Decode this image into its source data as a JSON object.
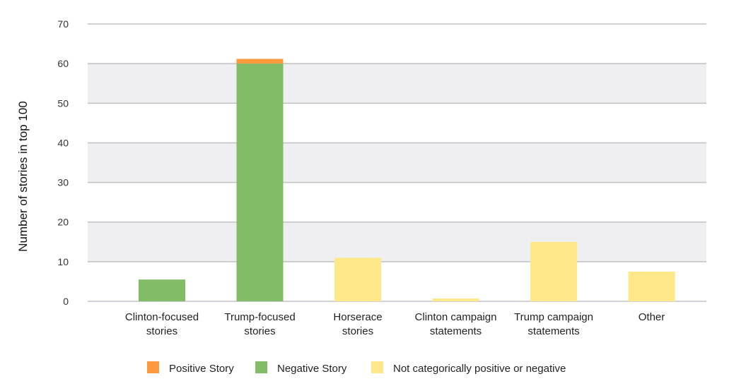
{
  "chart_data": {
    "type": "bar",
    "stacked": true,
    "categories": [
      [
        "Clinton-focused",
        "stories"
      ],
      [
        "Trump-focused",
        "stories"
      ],
      [
        "Horserace",
        "stories"
      ],
      [
        "Clinton campaign",
        "statements"
      ],
      [
        "Trump campaign",
        "statements"
      ],
      [
        "Other"
      ]
    ],
    "series": [
      {
        "name": "Not categorically positive or negative",
        "color": "#ffe88a",
        "values": [
          0,
          0,
          11,
          0.7,
          15,
          7.5
        ]
      },
      {
        "name": "Negative Story",
        "color": "#82bc66",
        "values": [
          5.5,
          60,
          0,
          0,
          0,
          0
        ]
      },
      {
        "name": "Positive Story",
        "color": "#ff9a3c",
        "values": [
          0,
          1.2,
          0,
          0,
          0,
          0
        ]
      }
    ],
    "legend_order": [
      2,
      1,
      0
    ],
    "ylabel": "Number of stories in top 100",
    "xlabel": "",
    "ylim": [
      0,
      70
    ],
    "yticks": [
      0,
      10,
      20,
      30,
      40,
      50,
      60,
      70
    ],
    "grid": true,
    "band_color": "#efeff1",
    "legend_position": "bottom"
  }
}
